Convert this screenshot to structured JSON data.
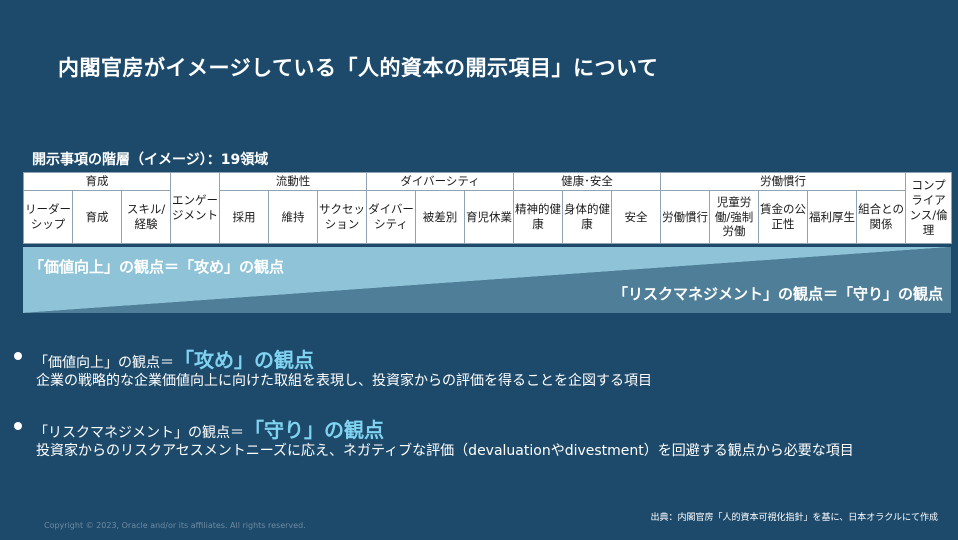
{
  "title": "内閣官房がイメージしている「人的資本の開示項目」について",
  "subtitle": "開示事項の階層（イメージ）：19領域",
  "table": {
    "groups": {
      "ikusei": "育成",
      "engagement": "エンゲージメント",
      "ryudosei": "流動性",
      "diversity": "ダイバーシティ",
      "kenko": "健康･安全",
      "rodo": "労働慣行",
      "compliance": "コンプライアンス/倫理"
    },
    "items": {
      "leadership": "リーダーシップ",
      "ikusei": "育成",
      "skill": "スキル/経験",
      "saiyo": "採用",
      "iji": "維持",
      "succession": "サクセッション",
      "diversity": "ダイバーシティ",
      "hisabetsu": "被差別",
      "ikuji": "育児休業",
      "seishin": "精神的健康",
      "shintai": "身体的健康",
      "anzen": "安全",
      "rodo_kanko": "労働慣行",
      "jido": "児童労働/強制労働",
      "chingin": "賃金の公正性",
      "fukuri": "福利厚生",
      "kumiai": "組合との関係"
    }
  },
  "band": {
    "top_label": "「価値向上」の観点＝「攻め」の観点",
    "bottom_label": "「リスクマネジメント」の観点＝「守り」の観点",
    "colors": {
      "top": "#8fc3d8",
      "bottom": "#5c8ea6"
    }
  },
  "bullets": [
    {
      "prefix": "「価値向上」の観点＝",
      "emphasis": "「攻め」の観点",
      "description": "企業の戦略的な企業価値向上に向けた取組を表現し、投資家からの評価を得ることを企図する項目"
    },
    {
      "prefix": "「リスクマネジメント」の観点＝",
      "emphasis": "「守り」の観点",
      "description": "投資家からのリスクアセスメントニーズに応え、ネガティブな評価（devaluationやdivestment）を回避する観点から必要な項目"
    }
  ],
  "source": "出典：内閣官房「人的資本可視化指針」を基に、日本オラクルにて作成",
  "copyright": "Copyright © 2023, Oracle and/or its affiliates. All rights reserved."
}
